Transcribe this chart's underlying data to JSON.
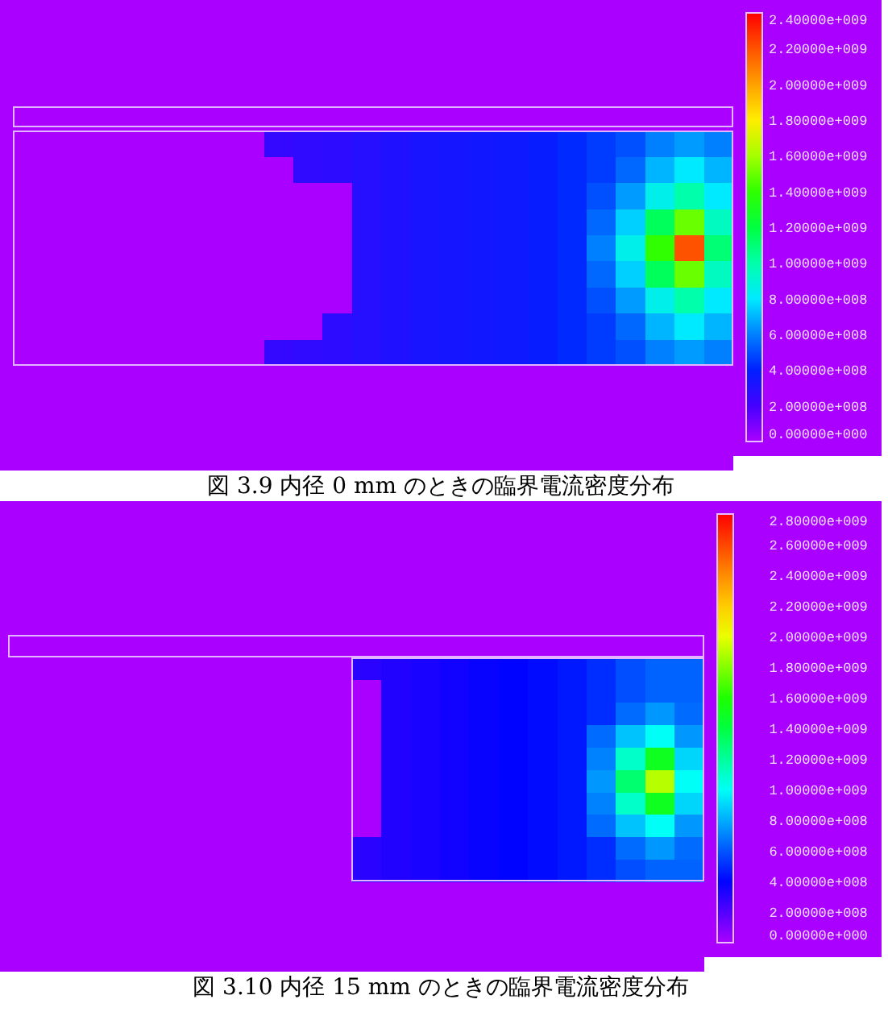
{
  "chart_data": [
    {
      "type": "heatmap",
      "title": "図 3.9 内径 0 mm のときの臨界電流密度分布",
      "categories": [
        null,
        null,
        null,
        null,
        null,
        null,
        null,
        null,
        null,
        null,
        null,
        null,
        null,
        null,
        null,
        null,
        null,
        null,
        null,
        null,
        null,
        null,
        null,
        null,
        null
      ],
      "y_categories": [
        null,
        null,
        null,
        null,
        null,
        null,
        null,
        null,
        null,
        null,
        null,
        null,
        null,
        null,
        null,
        null,
        null,
        null
      ],
      "cells": [
        [
          0,
          0,
          0,
          0,
          0,
          0,
          0,
          0,
          0,
          0,
          0,
          0,
          0,
          0,
          0,
          0,
          0,
          0,
          0,
          0,
          0,
          0,
          0,
          0,
          0
        ],
        [
          0,
          0,
          0,
          0,
          0,
          0,
          0,
          0,
          0,
          0,
          0,
          0,
          0,
          0,
          0,
          0,
          0,
          0,
          0,
          0,
          0,
          0,
          0,
          0,
          0
        ],
        [
          0,
          0,
          0,
          0,
          0,
          0,
          0,
          0,
          0,
          0,
          0,
          0,
          0,
          0,
          0,
          0,
          0,
          0,
          0,
          0,
          0,
          0,
          0,
          0,
          0
        ],
        [
          0,
          0,
          0,
          0,
          0,
          0,
          0,
          0,
          0,
          0,
          0,
          0,
          0,
          0,
          0,
          0,
          0,
          0,
          0,
          0,
          0,
          0,
          0,
          0,
          0
        ],
        [
          0,
          0,
          0,
          0,
          0,
          0,
          0,
          0,
          0,
          0,
          0,
          0,
          0,
          0,
          0,
          0,
          0,
          0,
          0,
          0,
          0,
          0,
          0,
          0,
          0
        ],
        [
          0,
          0,
          0,
          0,
          0,
          0,
          0,
          0,
          0,
          250000000.0,
          260000000.0,
          270000000.0,
          290000000.0,
          310000000.0,
          330000000.0,
          340000000.0,
          350000000.0,
          360000000.0,
          380000000.0,
          420000000.0,
          460000000.0,
          500000000.0,
          600000000.0,
          650000000.0,
          600000000.0
        ],
        [
          0,
          0,
          0,
          0,
          0,
          0,
          0,
          0,
          0,
          0,
          260000000.0,
          270000000.0,
          290000000.0,
          310000000.0,
          330000000.0,
          340000000.0,
          350000000.0,
          360000000.0,
          380000000.0,
          420000000.0,
          460000000.0,
          550000000.0,
          700000000.0,
          800000000.0,
          700000000.0
        ],
        [
          0,
          0,
          0,
          0,
          0,
          0,
          0,
          0,
          0,
          0,
          0,
          0,
          290000000.0,
          310000000.0,
          330000000.0,
          340000000.0,
          350000000.0,
          360000000.0,
          380000000.0,
          420000000.0,
          500000000.0,
          650000000.0,
          850000000.0,
          1000000000.0,
          800000000.0
        ],
        [
          0,
          0,
          0,
          0,
          0,
          0,
          0,
          0,
          0,
          0,
          0,
          0,
          290000000.0,
          310000000.0,
          330000000.0,
          340000000.0,
          350000000.0,
          360000000.0,
          380000000.0,
          420000000.0,
          550000000.0,
          750000000.0,
          1150000000.0,
          1500000000.0,
          950000000.0
        ],
        [
          0,
          0,
          0,
          0,
          0,
          0,
          0,
          0,
          0,
          0,
          0,
          0,
          290000000.0,
          310000000.0,
          330000000.0,
          340000000.0,
          350000000.0,
          360000000.0,
          380000000.0,
          420000000.0,
          600000000.0,
          850000000.0,
          1400000000.0,
          2200000000.0,
          1100000000.0
        ],
        [
          0,
          0,
          0,
          0,
          0,
          0,
          0,
          0,
          0,
          0,
          0,
          0,
          290000000.0,
          310000000.0,
          330000000.0,
          340000000.0,
          350000000.0,
          360000000.0,
          380000000.0,
          420000000.0,
          550000000.0,
          750000000.0,
          1150000000.0,
          1500000000.0,
          950000000.0
        ],
        [
          0,
          0,
          0,
          0,
          0,
          0,
          0,
          0,
          0,
          0,
          0,
          0,
          290000000.0,
          310000000.0,
          330000000.0,
          340000000.0,
          350000000.0,
          360000000.0,
          380000000.0,
          420000000.0,
          500000000.0,
          650000000.0,
          850000000.0,
          1000000000.0,
          800000000.0
        ],
        [
          0,
          0,
          0,
          0,
          0,
          0,
          0,
          0,
          0,
          0,
          0,
          270000000.0,
          290000000.0,
          310000000.0,
          330000000.0,
          340000000.0,
          350000000.0,
          360000000.0,
          380000000.0,
          420000000.0,
          460000000.0,
          550000000.0,
          700000000.0,
          800000000.0,
          700000000.0
        ],
        [
          0,
          0,
          0,
          0,
          0,
          0,
          0,
          0,
          0,
          250000000.0,
          260000000.0,
          270000000.0,
          290000000.0,
          310000000.0,
          330000000.0,
          340000000.0,
          350000000.0,
          360000000.0,
          380000000.0,
          420000000.0,
          460000000.0,
          500000000.0,
          600000000.0,
          650000000.0,
          600000000.0
        ],
        [
          0,
          0,
          0,
          0,
          0,
          0,
          0,
          0,
          0,
          0,
          0,
          0,
          0,
          0,
          0,
          0,
          0,
          0,
          0,
          0,
          0,
          0,
          0,
          0,
          0
        ],
        [
          0,
          0,
          0,
          0,
          0,
          0,
          0,
          0,
          0,
          0,
          0,
          0,
          0,
          0,
          0,
          0,
          0,
          0,
          0,
          0,
          0,
          0,
          0,
          0,
          0
        ],
        [
          0,
          0,
          0,
          0,
          0,
          0,
          0,
          0,
          0,
          0,
          0,
          0,
          0,
          0,
          0,
          0,
          0,
          0,
          0,
          0,
          0,
          0,
          0,
          0,
          0
        ],
        [
          0,
          0,
          0,
          0,
          0,
          0,
          0,
          0,
          0,
          0,
          0,
          0,
          0,
          0,
          0,
          0,
          0,
          0,
          0,
          0,
          0,
          0,
          0,
          0,
          0
        ]
      ],
      "clim": [
        0,
        2400000000.0
      ],
      "cticks": [
        {
          "value": 0,
          "label": "0.00000e+000"
        },
        {
          "value": 200000000.0,
          "label": "2.00000e+008"
        },
        {
          "value": 400000000.0,
          "label": "4.00000e+008"
        },
        {
          "value": 600000000.0,
          "label": "6.00000e+008"
        },
        {
          "value": 800000000.0,
          "label": "8.00000e+008"
        },
        {
          "value": 1000000000.0,
          "label": "1.00000e+009"
        },
        {
          "value": 1200000000.0,
          "label": "1.20000e+009"
        },
        {
          "value": 1400000000.0,
          "label": "1.40000e+009"
        },
        {
          "value": 1600000000.0,
          "label": "1.60000e+009"
        },
        {
          "value": 1800000000.0,
          "label": "1.80000e+009"
        },
        {
          "value": 2000000000.0,
          "label": "2.00000e+009"
        },
        {
          "value": 2200000000.0,
          "label": "2.20000e+009"
        },
        {
          "value": 2400000000.0,
          "label": "2.40000e+009"
        }
      ]
    },
    {
      "type": "heatmap",
      "title": "図 3.10 内径 15 mm のときの臨界電流密度分布",
      "categories": [
        null,
        null,
        null,
        null,
        null,
        null,
        null,
        null,
        null,
        null,
        null,
        null,
        null,
        null,
        null,
        null,
        null,
        null,
        null,
        null,
        null,
        null,
        null,
        null
      ],
      "y_categories": [
        null,
        null,
        null,
        null,
        null,
        null,
        null,
        null,
        null,
        null,
        null,
        null,
        null,
        null,
        null,
        null,
        null,
        null,
        null,
        null,
        null
      ],
      "cells": [
        [
          0,
          0,
          0,
          0,
          0,
          0,
          0,
          0,
          0,
          0,
          0,
          0,
          0,
          0,
          0,
          0,
          0,
          0,
          0,
          0,
          0,
          0,
          0,
          0
        ],
        [
          0,
          0,
          0,
          0,
          0,
          0,
          0,
          0,
          0,
          0,
          0,
          0,
          0,
          0,
          0,
          0,
          0,
          0,
          0,
          0,
          0,
          0,
          0,
          0
        ],
        [
          0,
          0,
          0,
          0,
          0,
          0,
          0,
          0,
          0,
          0,
          0,
          0,
          0,
          0,
          0,
          0,
          0,
          0,
          0,
          0,
          0,
          0,
          0,
          0
        ],
        [
          0,
          0,
          0,
          0,
          0,
          0,
          0,
          0,
          0,
          0,
          0,
          0,
          0,
          0,
          0,
          0,
          0,
          0,
          0,
          0,
          0,
          0,
          0,
          0
        ],
        [
          0,
          0,
          0,
          0,
          0,
          0,
          0,
          0,
          0,
          0,
          0,
          0,
          0,
          0,
          0,
          0,
          0,
          0,
          0,
          0,
          0,
          0,
          0,
          0
        ],
        [
          0,
          0,
          0,
          0,
          0,
          0,
          0,
          0,
          0,
          0,
          0,
          0,
          0,
          0,
          0,
          0,
          0,
          0,
          0,
          0,
          0,
          0,
          0,
          0
        ],
        [
          0,
          0,
          0,
          0,
          0,
          0,
          0,
          0,
          0,
          0,
          0,
          0,
          0,
          0,
          0,
          0,
          0,
          0,
          0,
          0,
          0,
          0,
          0,
          0
        ],
        [
          0,
          0,
          0,
          0,
          0,
          0,
          0,
          0,
          0,
          0,
          0,
          0,
          300000000.0,
          320000000.0,
          340000000.0,
          360000000.0,
          380000000.0,
          400000000.0,
          420000000.0,
          450000000.0,
          500000000.0,
          580000000.0,
          630000000.0,
          630000000.0
        ],
        [
          0,
          0,
          0,
          0,
          0,
          0,
          0,
          0,
          0,
          0,
          0,
          0,
          0,
          320000000.0,
          340000000.0,
          360000000.0,
          380000000.0,
          400000000.0,
          420000000.0,
          450000000.0,
          500000000.0,
          580000000.0,
          630000000.0,
          630000000.0
        ],
        [
          0,
          0,
          0,
          0,
          0,
          0,
          0,
          0,
          0,
          0,
          0,
          0,
          0,
          320000000.0,
          340000000.0,
          360000000.0,
          380000000.0,
          400000000.0,
          420000000.0,
          450000000.0,
          500000000.0,
          650000000.0,
          750000000.0,
          650000000.0
        ],
        [
          0,
          0,
          0,
          0,
          0,
          0,
          0,
          0,
          0,
          0,
          0,
          0,
          0,
          320000000.0,
          340000000.0,
          360000000.0,
          380000000.0,
          400000000.0,
          420000000.0,
          450000000.0,
          650000000.0,
          850000000.0,
          1000000000.0,
          750000000.0
        ],
        [
          0,
          0,
          0,
          0,
          0,
          0,
          0,
          0,
          0,
          0,
          0,
          0,
          0,
          320000000.0,
          340000000.0,
          360000000.0,
          380000000.0,
          400000000.0,
          420000000.0,
          450000000.0,
          700000000.0,
          1100000000.0,
          1500000000.0,
          900000000.0
        ],
        [
          0,
          0,
          0,
          0,
          0,
          0,
          0,
          0,
          0,
          0,
          0,
          0,
          0,
          320000000.0,
          340000000.0,
          360000000.0,
          380000000.0,
          400000000.0,
          420000000.0,
          450000000.0,
          750000000.0,
          1300000000.0,
          1900000000.0,
          1000000000.0
        ],
        [
          0,
          0,
          0,
          0,
          0,
          0,
          0,
          0,
          0,
          0,
          0,
          0,
          0,
          320000000.0,
          340000000.0,
          360000000.0,
          380000000.0,
          400000000.0,
          420000000.0,
          450000000.0,
          700000000.0,
          1100000000.0,
          1500000000.0,
          900000000.0
        ],
        [
          0,
          0,
          0,
          0,
          0,
          0,
          0,
          0,
          0,
          0,
          0,
          0,
          0,
          320000000.0,
          340000000.0,
          360000000.0,
          380000000.0,
          400000000.0,
          420000000.0,
          450000000.0,
          650000000.0,
          850000000.0,
          1000000000.0,
          750000000.0
        ],
        [
          0,
          0,
          0,
          0,
          0,
          0,
          0,
          0,
          0,
          0,
          0,
          0,
          300000000.0,
          320000000.0,
          340000000.0,
          360000000.0,
          380000000.0,
          400000000.0,
          420000000.0,
          450000000.0,
          500000000.0,
          650000000.0,
          750000000.0,
          650000000.0
        ],
        [
          0,
          0,
          0,
          0,
          0,
          0,
          0,
          0,
          0,
          0,
          0,
          0,
          300000000.0,
          320000000.0,
          340000000.0,
          360000000.0,
          380000000.0,
          400000000.0,
          420000000.0,
          450000000.0,
          500000000.0,
          580000000.0,
          630000000.0,
          630000000.0
        ],
        [
          0,
          0,
          0,
          0,
          0,
          0,
          0,
          0,
          0,
          0,
          0,
          0,
          0,
          0,
          0,
          0,
          0,
          0,
          0,
          0,
          0,
          0,
          0,
          0
        ],
        [
          0,
          0,
          0,
          0,
          0,
          0,
          0,
          0,
          0,
          0,
          0,
          0,
          0,
          0,
          0,
          0,
          0,
          0,
          0,
          0,
          0,
          0,
          0,
          0
        ],
        [
          0,
          0,
          0,
          0,
          0,
          0,
          0,
          0,
          0,
          0,
          0,
          0,
          0,
          0,
          0,
          0,
          0,
          0,
          0,
          0,
          0,
          0,
          0,
          0
        ],
        [
          0,
          0,
          0,
          0,
          0,
          0,
          0,
          0,
          0,
          0,
          0,
          0,
          0,
          0,
          0,
          0,
          0,
          0,
          0,
          0,
          0,
          0,
          0,
          0
        ]
      ],
      "clim": [
        0,
        2800000000.0
      ],
      "cticks": [
        {
          "value": 0,
          "label": "0.00000e+000"
        },
        {
          "value": 200000000.0,
          "label": "2.00000e+008"
        },
        {
          "value": 400000000.0,
          "label": "4.00000e+008"
        },
        {
          "value": 600000000.0,
          "label": "6.00000e+008"
        },
        {
          "value": 800000000.0,
          "label": "8.00000e+008"
        },
        {
          "value": 1000000000.0,
          "label": "1.00000e+009"
        },
        {
          "value": 1200000000.0,
          "label": "1.20000e+009"
        },
        {
          "value": 1400000000.0,
          "label": "1.40000e+009"
        },
        {
          "value": 1600000000.0,
          "label": "1.60000e+009"
        },
        {
          "value": 1800000000.0,
          "label": "1.80000e+009"
        },
        {
          "value": 2000000000.0,
          "label": "2.00000e+009"
        },
        {
          "value": 2200000000.0,
          "label": "2.20000e+009"
        },
        {
          "value": 2400000000.0,
          "label": "2.40000e+009"
        },
        {
          "value": 2600000000.0,
          "label": "2.60000e+009"
        },
        {
          "value": 2800000000.0,
          "label": "2.80000e+009"
        }
      ]
    }
  ]
}
